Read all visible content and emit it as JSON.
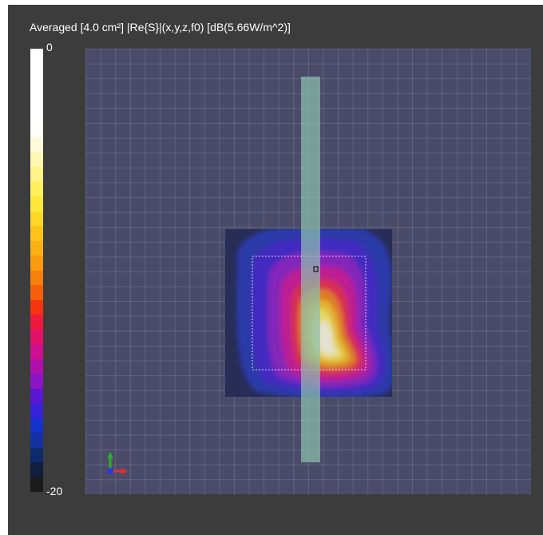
{
  "viewer": {
    "title": "Averaged [4.0 cm²] |Re{S}|(x,y,z,f0) [dB(5.66W/m^2)]"
  },
  "colorbar": {
    "max_label": "0",
    "min_label": "-20",
    "colors": [
      "#1a1a1a",
      "#0f1f3c",
      "#0e2a6c",
      "#1331a3",
      "#1432c9",
      "#3522d6",
      "#5a18d2",
      "#8a15c2",
      "#b011ac",
      "#d00f8e",
      "#e3106a",
      "#ee1a3e",
      "#f4330f",
      "#f55e0d",
      "#f7800d",
      "#f99a10",
      "#fbb014",
      "#fdc31b",
      "#fed826",
      "#ffe83d",
      "#fff05c",
      "#fff488",
      "#fff8b5",
      "#fffbd9",
      "#fffefa",
      "#ffffff",
      "#ffffff",
      "#ffffff",
      "#ffffff",
      "#ffffff"
    ]
  },
  "colors": {
    "viewport_bg": "#3c3c3c",
    "plot_bg": "#4a4b69",
    "strip": "#8cbfae"
  },
  "icons": {
    "axes_widget": "xyz-axes-icon",
    "probe_marker": "probe-marker-icon"
  }
}
